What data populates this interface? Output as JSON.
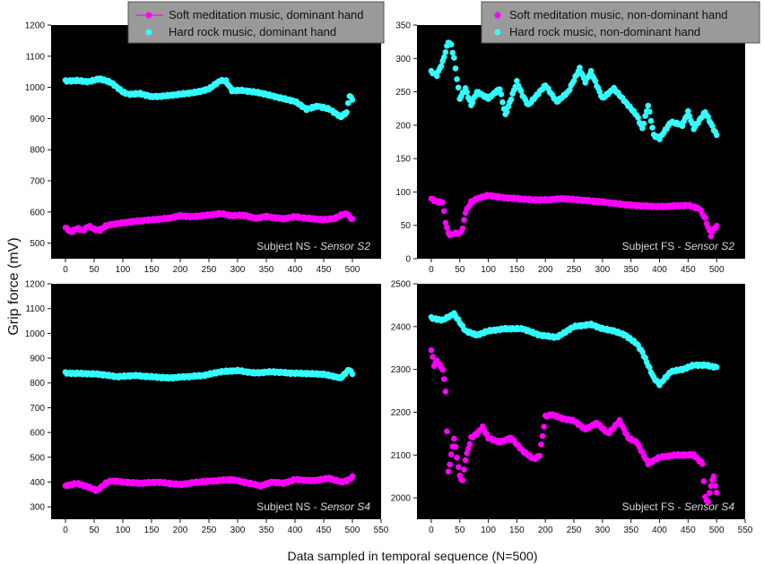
{
  "figure": {
    "ylabel": "Grip force (mV)",
    "xlabel": "Data sampled in temporal sequence (N=500)"
  },
  "chart_data": [
    {
      "type": "scatter",
      "label_plain": "Subject NS - ",
      "label_italic": "Sensor S2",
      "xlim": [
        -25,
        550
      ],
      "ylim": [
        450,
        1200
      ],
      "x_ticks": [
        0,
        50,
        100,
        150,
        200,
        250,
        300,
        350,
        400,
        450,
        500
      ],
      "y_ticks": [
        500,
        600,
        700,
        800,
        900,
        1000,
        1100,
        1200
      ],
      "legend": {
        "entries": [
          "Soft meditation music, dominant hand",
          "Hard rock music, dominant hand"
        ],
        "marker_styles": [
          "line-marker",
          "marker"
        ]
      },
      "series": [
        {
          "name": "Soft meditation music, dominant hand",
          "color": "#ff00ff",
          "x": [
            0,
            10,
            20,
            30,
            40,
            50,
            60,
            70,
            80,
            100,
            120,
            150,
            180,
            200,
            220,
            250,
            270,
            290,
            310,
            330,
            350,
            380,
            400,
            420,
            450,
            470,
            480,
            490,
            500
          ],
          "y": [
            550,
            535,
            548,
            540,
            555,
            545,
            542,
            555,
            560,
            565,
            570,
            575,
            580,
            588,
            585,
            590,
            595,
            588,
            590,
            580,
            585,
            578,
            585,
            580,
            575,
            580,
            590,
            595,
            575
          ]
        },
        {
          "name": "Hard rock music, dominant hand",
          "color": "#33ffff",
          "x": [
            0,
            20,
            40,
            60,
            80,
            100,
            110,
            130,
            150,
            170,
            200,
            230,
            250,
            270,
            280,
            290,
            310,
            340,
            370,
            400,
            420,
            440,
            460,
            480,
            490,
            495,
            500
          ],
          "y": [
            1020,
            1022,
            1018,
            1028,
            1015,
            985,
            978,
            980,
            970,
            972,
            978,
            985,
            995,
            1022,
            1020,
            990,
            990,
            982,
            968,
            955,
            930,
            940,
            930,
            905,
            920,
            975,
            960
          ]
        }
      ]
    },
    {
      "type": "scatter",
      "label_plain": "Subject FS - ",
      "label_italic": "Sensor S2",
      "xlim": [
        -25,
        550
      ],
      "ylim": [
        0,
        350
      ],
      "x_ticks": [
        0,
        50,
        100,
        150,
        200,
        250,
        300,
        350,
        400,
        450,
        500
      ],
      "y_ticks": [
        0,
        50,
        100,
        150,
        200,
        250,
        300,
        350
      ],
      "legend": {
        "entries": [
          "Soft meditation music, non-dominant hand",
          "Hard rock music, non-dominant hand"
        ],
        "marker_styles": [
          "marker",
          "marker"
        ]
      },
      "series": [
        {
          "name": "Soft meditation music, non-dominant hand",
          "color": "#ff00ff",
          "x": [
            0,
            10,
            20,
            25,
            30,
            35,
            40,
            50,
            55,
            60,
            70,
            80,
            100,
            120,
            150,
            180,
            200,
            230,
            260,
            300,
            350,
            400,
            450,
            470,
            480,
            490,
            495,
            500
          ],
          "y": [
            90,
            85,
            85,
            55,
            38,
            35,
            38,
            38,
            45,
            70,
            85,
            90,
            95,
            92,
            90,
            88,
            88,
            90,
            88,
            85,
            80,
            78,
            80,
            75,
            60,
            35,
            45,
            48
          ]
        },
        {
          "name": "Hard rock music, non-dominant hand",
          "color": "#33ffff",
          "x": [
            0,
            10,
            20,
            30,
            35,
            40,
            50,
            60,
            70,
            80,
            100,
            120,
            130,
            140,
            150,
            160,
            170,
            180,
            200,
            220,
            240,
            260,
            270,
            280,
            300,
            320,
            340,
            360,
            370,
            380,
            390,
            400,
            420,
            440,
            450,
            460,
            480,
            500
          ],
          "y": [
            280,
            275,
            295,
            325,
            320,
            300,
            240,
            255,
            230,
            250,
            240,
            255,
            215,
            240,
            265,
            245,
            230,
            240,
            260,
            235,
            250,
            285,
            265,
            280,
            240,
            255,
            235,
            215,
            195,
            230,
            185,
            180,
            205,
            200,
            220,
            195,
            220,
            185
          ]
        }
      ]
    },
    {
      "type": "scatter",
      "label_plain": "Subject NS - ",
      "label_italic": "Sensor S4",
      "xlim": [
        -25,
        550
      ],
      "ylim": [
        250,
        1200
      ],
      "x_ticks": [
        0,
        50,
        100,
        150,
        200,
        250,
        300,
        350,
        400,
        450,
        500,
        550
      ],
      "y_ticks": [
        300,
        400,
        500,
        600,
        700,
        800,
        900,
        1000,
        1100,
        1200
      ],
      "series": [
        {
          "name": "Soft meditation music, dominant hand",
          "color": "#ff00ff",
          "x": [
            0,
            20,
            40,
            55,
            60,
            70,
            80,
            100,
            130,
            160,
            200,
            230,
            260,
            290,
            320,
            340,
            360,
            380,
            400,
            430,
            460,
            480,
            490,
            500
          ],
          "y": [
            385,
            395,
            380,
            365,
            375,
            395,
            405,
            400,
            395,
            400,
            390,
            400,
            405,
            410,
            395,
            385,
            400,
            395,
            410,
            405,
            415,
            400,
            405,
            420
          ]
        },
        {
          "name": "Hard rock music, dominant hand",
          "color": "#33ffff",
          "x": [
            0,
            30,
            60,
            90,
            120,
            150,
            180,
            210,
            240,
            270,
            300,
            330,
            360,
            390,
            420,
            450,
            470,
            480,
            490,
            495,
            500
          ],
          "y": [
            840,
            838,
            835,
            825,
            830,
            825,
            820,
            825,
            830,
            845,
            850,
            840,
            845,
            840,
            838,
            835,
            825,
            820,
            845,
            855,
            835
          ]
        }
      ]
    },
    {
      "type": "scatter",
      "label_plain": "Subject FS - ",
      "label_italic": "Sensor S4",
      "xlim": [
        -25,
        550
      ],
      "ylim": [
        1950,
        2500
      ],
      "x_ticks": [
        0,
        50,
        100,
        150,
        200,
        250,
        300,
        350,
        400,
        450,
        500,
        550
      ],
      "y_ticks": [
        2000,
        2100,
        2200,
        2300,
        2400,
        2500
      ],
      "series": [
        {
          "name": "Soft meditation music, non-dominant hand",
          "color": "#ff00ff",
          "x": [
            0,
            5,
            10,
            20,
            25,
            30,
            35,
            40,
            50,
            55,
            60,
            70,
            80,
            90,
            100,
            120,
            140,
            160,
            180,
            190,
            200,
            210,
            230,
            250,
            270,
            290,
            310,
            330,
            345,
            360,
            380,
            400,
            430,
            460,
            475,
            480,
            485,
            490,
            495,
            500
          ],
          "y": [
            2345,
            2310,
            2320,
            2300,
            2250,
            2060,
            2100,
            2140,
            2050,
            2040,
            2090,
            2140,
            2150,
            2165,
            2140,
            2130,
            2140,
            2110,
            2090,
            2100,
            2190,
            2195,
            2185,
            2180,
            2160,
            2175,
            2150,
            2180,
            2140,
            2130,
            2080,
            2095,
            2100,
            2100,
            2080,
            2000,
            1990,
            2030,
            2050,
            2010
          ]
        },
        {
          "name": "Hard rock music, non-dominant hand",
          "color": "#33ffff",
          "x": [
            0,
            20,
            40,
            60,
            80,
            100,
            130,
            160,
            190,
            220,
            250,
            280,
            300,
            320,
            340,
            360,
            370,
            380,
            390,
            400,
            420,
            440,
            460,
            480,
            500
          ],
          "y": [
            2420,
            2415,
            2430,
            2390,
            2380,
            2390,
            2395,
            2395,
            2380,
            2375,
            2400,
            2405,
            2395,
            2390,
            2380,
            2360,
            2340,
            2310,
            2280,
            2265,
            2295,
            2300,
            2310,
            2310,
            2305
          ]
        }
      ]
    }
  ]
}
